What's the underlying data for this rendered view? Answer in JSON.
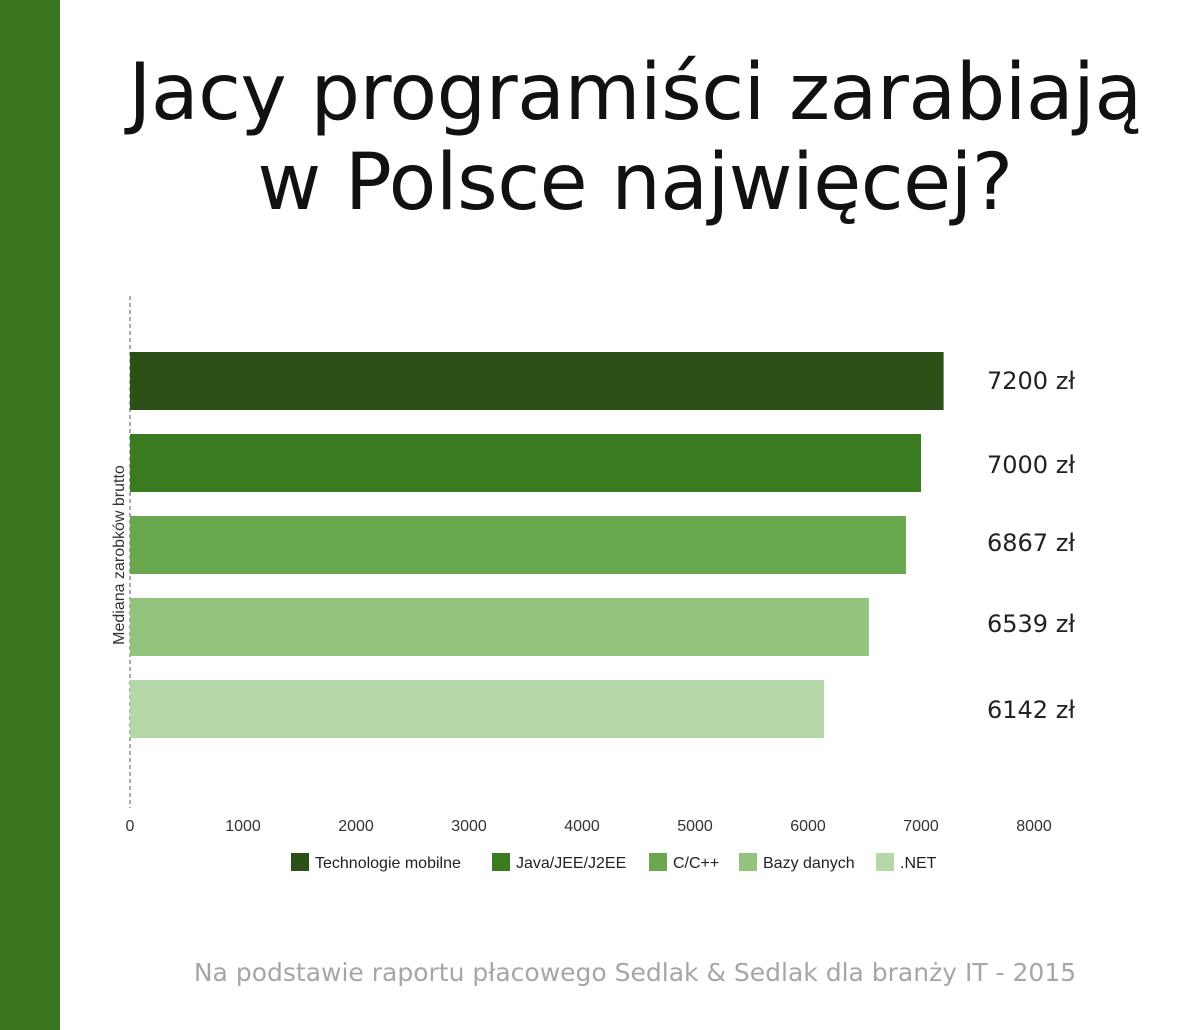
{
  "colors": {
    "side_stripe": "#3a7520"
  },
  "header": {
    "title_line1": "Jacy programiści zarabiają",
    "title_line2": "w Polsce najwięcej?"
  },
  "footer": {
    "source": "Na podstawie raportu płacowego Sedlak & Sedlak dla branży IT - 2015"
  },
  "chart_data": {
    "type": "bar",
    "orientation": "horizontal",
    "title": "Jacy programiści zarabiają w Polsce najwięcej?",
    "ylabel": "Mediana zarobków brutto",
    "xlabel": "",
    "xlim": [
      0,
      8000
    ],
    "x_ticks": [
      "0",
      "1000",
      "2000",
      "3000",
      "4000",
      "5000",
      "6000",
      "7000",
      "8000"
    ],
    "grid": false,
    "legend_position": "bottom",
    "series": [
      {
        "name": "Technologie mobilne",
        "value": 7200,
        "label": "7200 zł",
        "color": "#2c5116"
      },
      {
        "name": "Java/JEE/J2EE",
        "value": 7000,
        "label": "7000 zł",
        "color": "#3a7b21"
      },
      {
        "name": "C/C++",
        "value": 6867,
        "label": "6867 zł",
        "color": "#6aa84f"
      },
      {
        "name": "Bazy danych",
        "value": 6539,
        "label": "6539 zł",
        "color": "#93c47d"
      },
      {
        "name": ".NET",
        "value": 6142,
        "label": "6142 zł",
        "color": "#b6d7a8"
      }
    ]
  }
}
